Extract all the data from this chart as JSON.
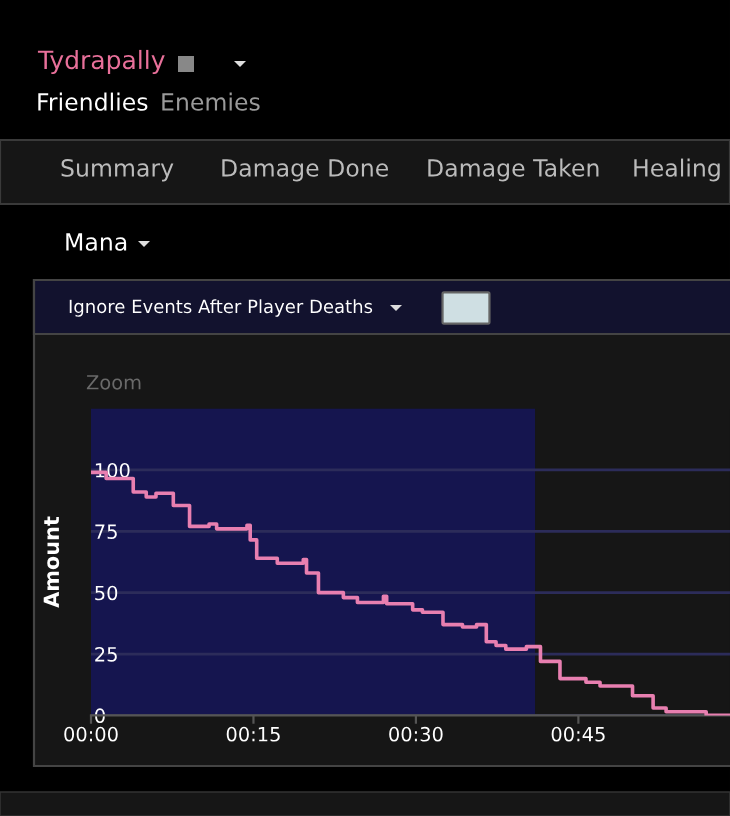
{
  "chart_data": {
    "type": "step",
    "title": "Mana",
    "ylabel": "Amount",
    "annotations": [
      "Tydrapally",
      "Friendlies",
      "Enemies",
      "Summary",
      "Damage Done",
      "Damage Taken",
      "Healing",
      "Ignore Events After Player Deaths",
      "Zoom"
    ],
    "series": [
      {
        "color": "#e87fb0",
        "x": [
          0,
          1.4,
          3.9,
          5.1,
          6.0,
          7.6,
          9.1,
          10.9,
          11.6,
          14.4,
          14.7,
          15.3,
          17.2,
          19.6,
          19.9,
          21,
          23.3,
          24.6,
          27.0,
          27.3,
          29.7,
          30.6,
          32.5,
          34.3,
          35.6,
          36.5,
          37.4,
          38.3,
          40.2,
          41.5,
          43.3,
          45.7,
          47,
          50,
          51.9,
          53.1,
          56.8,
          59
        ],
        "values": [
          99,
          96.5,
          91,
          89,
          90.5,
          85.5,
          77,
          78,
          76,
          77.5,
          71.5,
          64,
          62,
          63.5,
          58,
          50,
          48,
          46,
          48.5,
          45.5,
          43,
          42,
          37,
          36,
          37,
          30,
          28.5,
          27,
          28,
          22,
          15,
          13.5,
          12,
          8,
          3,
          1.5,
          0,
          0
        ]
      }
    ],
    "xlim": [
      0,
      59
    ],
    "xticks": [
      {
        "value": 0,
        "label": "00:00"
      },
      {
        "value": 15,
        "label": "00:15"
      },
      {
        "value": 30,
        "label": "00:30"
      },
      {
        "value": 45,
        "label": "00:45"
      }
    ],
    "ylim": [
      0,
      125
    ],
    "yticks": [
      0,
      25,
      50,
      75,
      100
    ],
    "grid": "y",
    "bands": [
      {
        "axis": "x",
        "from": 0,
        "to": 41,
        "color": "#15154f"
      }
    ]
  }
}
